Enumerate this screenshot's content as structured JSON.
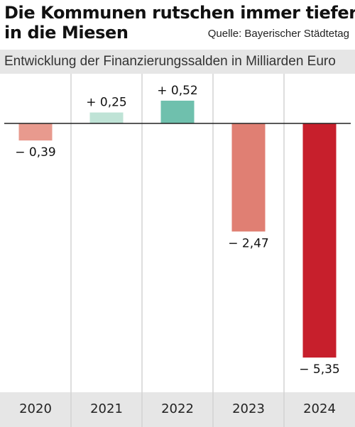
{
  "header": {
    "title_line1": "Die Kommunen rutschen immer tiefer",
    "title_line2": "in die Miesen",
    "source": "Quelle: Bayerischer Städtetag",
    "subtitle": "Entwicklung der Finanzierungssalden in Milliarden Euro"
  },
  "chart_data": {
    "type": "bar",
    "categories": [
      "2020",
      "2021",
      "2022",
      "2023",
      "2024"
    ],
    "values": [
      -0.39,
      0.25,
      0.52,
      -2.47,
      -5.35
    ],
    "value_labels": [
      "− 0,39",
      "+ 0,25",
      "+ 0,52",
      "− 2,47",
      "− 5,35"
    ],
    "colors": [
      "#e89a8e",
      "#bfe3d6",
      "#6fc0ad",
      "#e07f73",
      "#c71f2c"
    ],
    "ylim": [
      -5.6,
      0.6
    ],
    "grid": "vertical separators",
    "baseline": 0
  }
}
